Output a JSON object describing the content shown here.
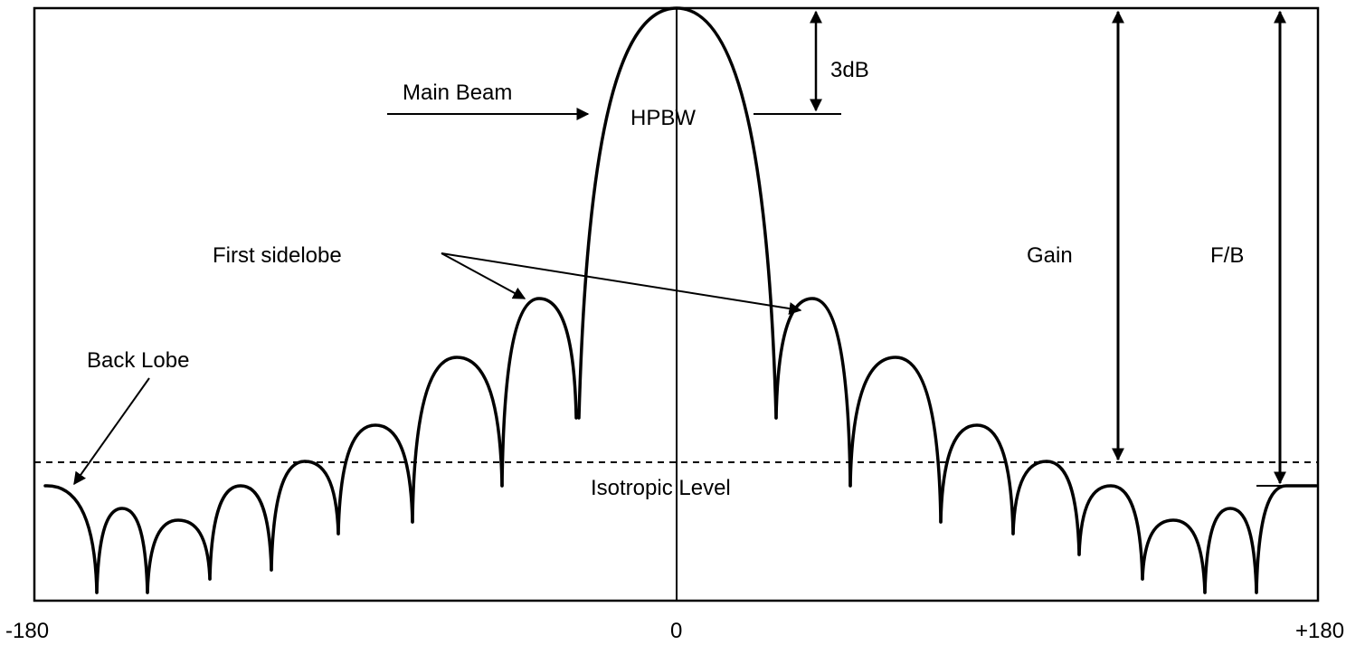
{
  "axis": {
    "x_ticks": [
      "-180",
      "0",
      "+180"
    ]
  },
  "annotations": {
    "main_beam": "Main Beam",
    "hpbw": "HPBW",
    "three_db": "3dB",
    "first_sidelobe": "First sidelobe",
    "back_lobe": "Back Lobe",
    "gain": "Gain",
    "fb": "F/B",
    "isotropic_level": "Isotropic Level"
  },
  "colors": {
    "line": "#000000",
    "background": "#ffffff"
  }
}
